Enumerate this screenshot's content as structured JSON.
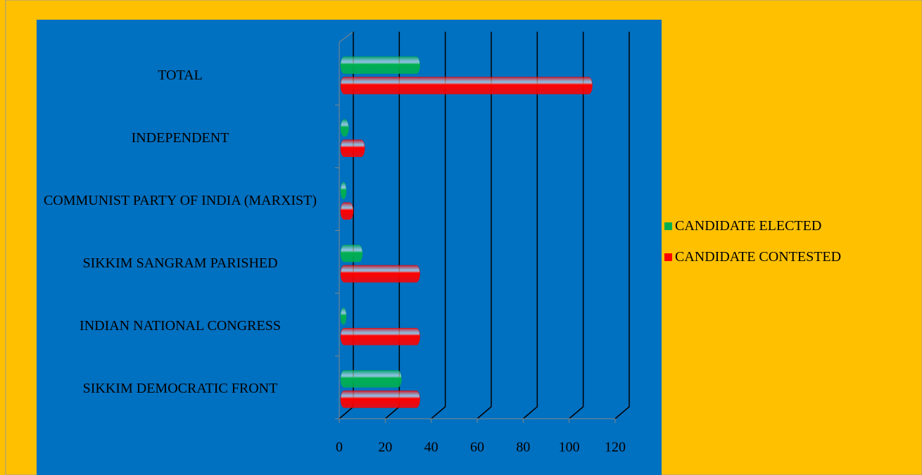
{
  "chart_data": {
    "type": "bar",
    "orientation": "horizontal",
    "categories": [
      "SIKKIM DEMOCRATIC FRONT",
      "INDIAN NATIONAL CONGRESS",
      "SIKKIM SANGRAM PARISHED",
      "COMMUNIST PARTY OF INDIA (MARXIST)",
      "INDEPENDENT",
      "TOTAL"
    ],
    "series": [
      {
        "name": "CANDIDATE ELECTED",
        "color": "#00B050",
        "values": [
          24,
          0,
          7,
          0,
          1,
          32
        ]
      },
      {
        "name": "CANDIDATE CONTESTED",
        "color": "#FF0000",
        "values": [
          32,
          32,
          32,
          3,
          8,
          107
        ]
      }
    ],
    "xlim": [
      0,
      120
    ],
    "xticks": [
      0,
      20,
      40,
      60,
      80,
      100,
      120
    ],
    "grid": true,
    "legend": "right"
  }
}
